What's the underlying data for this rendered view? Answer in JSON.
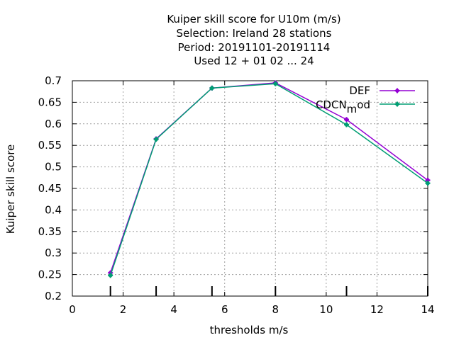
{
  "chart_data": {
    "type": "line",
    "title_lines": [
      "Kuiper skill score  for U10m (m/s)",
      "Selection: Ireland     28 stations",
      "Period: 20191101-20191114",
      "Used  12 + 01 02 ... 24"
    ],
    "xlabel": "thresholds m/s",
    "ylabel": "Kuiper skill score",
    "xlim": [
      0,
      14
    ],
    "ylim": [
      0.2,
      0.7
    ],
    "xticks": [
      0,
      2,
      4,
      6,
      8,
      10,
      12,
      14
    ],
    "yticks": [
      0.2,
      0.25,
      0.3,
      0.35,
      0.4,
      0.45,
      0.5,
      0.55,
      0.6,
      0.65,
      0.7
    ],
    "threshold_marks": [
      1.5,
      3.3,
      5.5,
      8,
      10.8,
      14
    ],
    "grid": true,
    "legend_position": "top-right",
    "series": [
      {
        "name": "DEF",
        "color": "#9400d3",
        "x": [
          1.5,
          3.3,
          5.5,
          8,
          10.8,
          14
        ],
        "y": [
          0.254,
          0.565,
          0.683,
          0.695,
          0.61,
          0.469
        ]
      },
      {
        "name": "CDCN_mod",
        "name_main": "CDCN",
        "name_sub": "m",
        "name_tail": "od",
        "color": "#009e73",
        "x": [
          1.5,
          3.3,
          5.5,
          8,
          10.8,
          14
        ],
        "y": [
          0.248,
          0.564,
          0.683,
          0.693,
          0.598,
          0.462
        ]
      }
    ]
  }
}
